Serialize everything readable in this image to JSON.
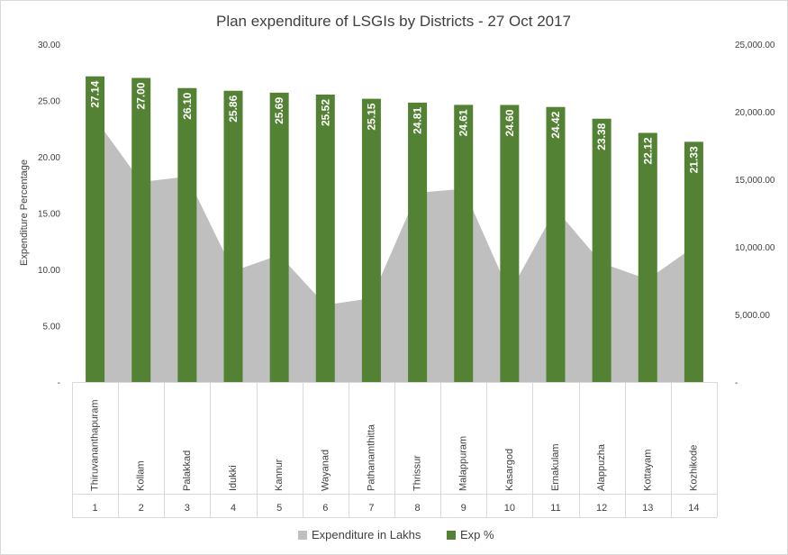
{
  "chart_data": {
    "type": "bar",
    "title": "Plan expenditure of LSGIs by Districts - 27 Oct 2017",
    "ylabel": "Expenditure Percentage",
    "ylim": [
      0,
      30
    ],
    "y2lim": [
      0,
      25000
    ],
    "y_ticks": [
      "-",
      "5.00",
      "10.00",
      "15.00",
      "20.00",
      "25.00",
      "30.00"
    ],
    "y2_ticks": [
      "-",
      "5,000.00",
      "10,000.00",
      "15,000.00",
      "20,000.00",
      "25,000.00"
    ],
    "categories": [
      "Thiruvananthapuram",
      "Kollam",
      "Palakkad",
      "Idukki",
      "Kannur",
      "Wayanad",
      "Pathanamthitta",
      "Thrissur",
      "Malappuram",
      "Kasargod",
      "Ernakulam",
      "Alappuzha",
      "Kottayam",
      "Kozhikode"
    ],
    "indices": [
      "1",
      "2",
      "3",
      "4",
      "5",
      "6",
      "7",
      "8",
      "9",
      "10",
      "11",
      "12",
      "13",
      "14"
    ],
    "series": [
      {
        "name": "Expenditure in Lakhs",
        "type": "area",
        "axis": "secondary",
        "color": "#bfbfbf",
        "values": [
          19500,
          14800,
          15200,
          8200,
          9400,
          5700,
          6200,
          14000,
          14300,
          6600,
          12800,
          8800,
          7600,
          10000
        ]
      },
      {
        "name": "Exp %",
        "type": "bar",
        "axis": "primary",
        "color": "#548235",
        "values": [
          27.14,
          27.0,
          26.1,
          25.86,
          25.69,
          25.52,
          25.15,
          24.81,
          24.61,
          24.6,
          24.42,
          23.38,
          22.12,
          21.33
        ],
        "labels": [
          "27.14",
          "27.00",
          "26.10",
          "25.86",
          "25.69",
          "25.52",
          "25.15",
          "24.81",
          "24.61",
          "24.60",
          "24.42",
          "23.38",
          "22.12",
          "21.33"
        ]
      }
    ],
    "legend": [
      "Expenditure in Lakhs",
      "Exp %"
    ],
    "legend_position": "bottom",
    "grid": false
  }
}
